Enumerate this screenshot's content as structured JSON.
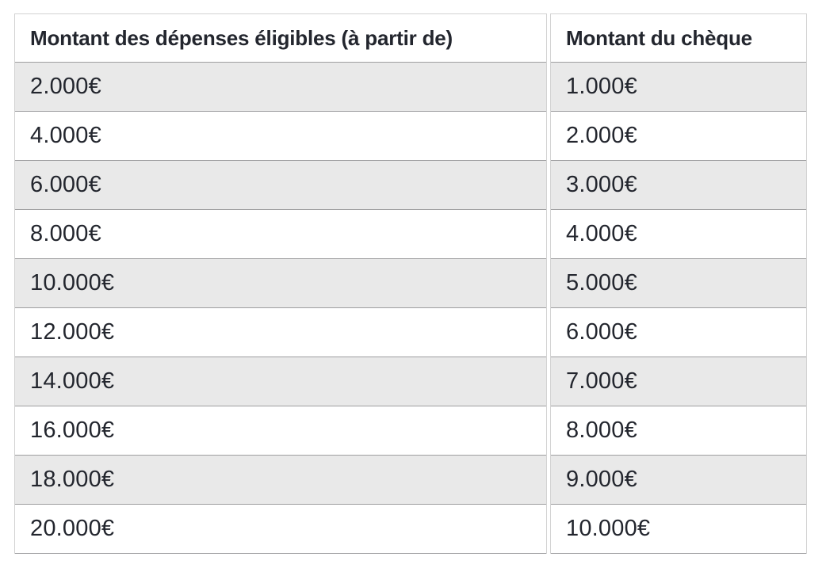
{
  "table": {
    "columns": [
      {
        "label": "Montant des dépenses éligibles (à partir de)"
      },
      {
        "label": "Montant du chèque"
      }
    ],
    "rows": [
      {
        "expenses": "2.000€",
        "cheque": "1.000€"
      },
      {
        "expenses": "4.000€",
        "cheque": "2.000€"
      },
      {
        "expenses": "6.000€",
        "cheque": "3.000€"
      },
      {
        "expenses": "8.000€",
        "cheque": "4.000€"
      },
      {
        "expenses": "10.000€",
        "cheque": "5.000€"
      },
      {
        "expenses": "12.000€",
        "cheque": "6.000€"
      },
      {
        "expenses": "14.000€",
        "cheque": "7.000€"
      },
      {
        "expenses": "16.000€",
        "cheque": "8.000€"
      },
      {
        "expenses": "18.000€",
        "cheque": "9.000€"
      },
      {
        "expenses": "20.000€",
        "cheque": "10.000€"
      }
    ]
  },
  "colors": {
    "background": "#ffffff",
    "stripe": "#e9e9e9",
    "row_border": "#9e9ea0",
    "outer_border": "#d2d2d2",
    "text": "#23262e"
  }
}
